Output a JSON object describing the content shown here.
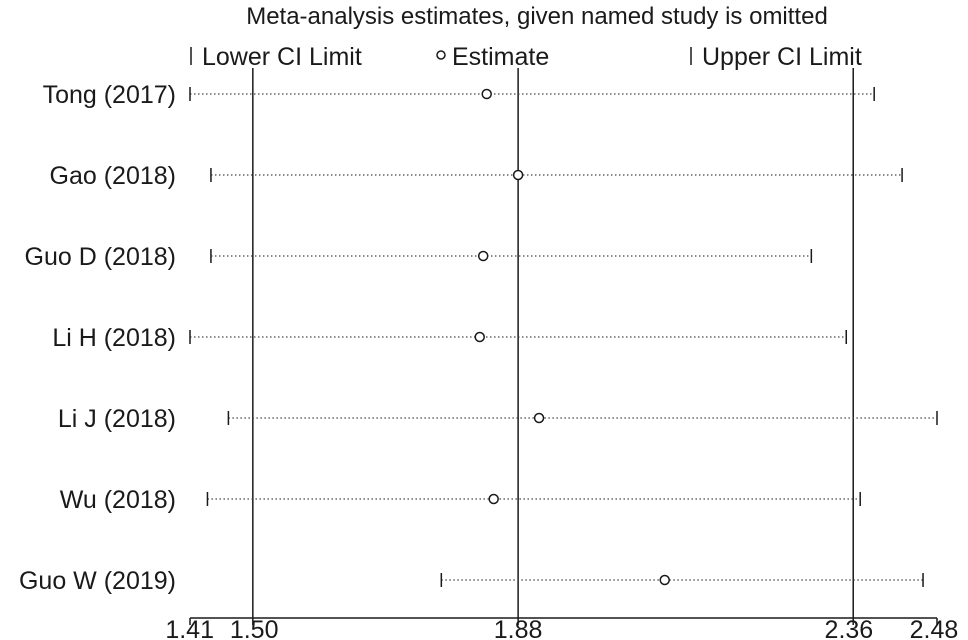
{
  "chart_data": {
    "type": "forest",
    "title": "Meta-analysis estimates, given named study is omitted",
    "legend": [
      {
        "key": "lower",
        "label": "Lower CI Limit",
        "marker": "tick"
      },
      {
        "key": "estimate",
        "label": "Estimate",
        "marker": "circle"
      },
      {
        "key": "upper",
        "label": "Upper CI Limit",
        "marker": "tick"
      }
    ],
    "x_ticks": [
      {
        "value": 1.41,
        "label": "1.41"
      },
      {
        "value": 1.5,
        "label": "1.50"
      },
      {
        "value": 1.88,
        "label": "1.88"
      },
      {
        "value": 2.36,
        "label": "2.36"
      },
      {
        "value": 2.48,
        "label": "2.48"
      }
    ],
    "xlim": [
      1.41,
      2.48
    ],
    "reference_lines": [
      1.5,
      1.88,
      2.36
    ],
    "studies": [
      {
        "label": "Tong (2017)",
        "lower": 1.41,
        "estimate": 1.835,
        "upper": 2.39
      },
      {
        "label": "Gao (2018)",
        "lower": 1.44,
        "estimate": 1.88,
        "upper": 2.43
      },
      {
        "label": "Guo D (2018)",
        "lower": 1.44,
        "estimate": 1.83,
        "upper": 2.3
      },
      {
        "label": "Li H (2018)",
        "lower": 1.41,
        "estimate": 1.825,
        "upper": 2.35
      },
      {
        "label": "Li J (2018)",
        "lower": 1.465,
        "estimate": 1.91,
        "upper": 2.48
      },
      {
        "label": "Wu (2018)",
        "lower": 1.435,
        "estimate": 1.845,
        "upper": 2.37
      },
      {
        "label": "Guo W (2019)",
        "lower": 1.77,
        "estimate": 2.09,
        "upper": 2.46
      }
    ],
    "colors": {
      "line": "#1a1a1a",
      "dotted": "#444444",
      "marker": "#1a1a1a"
    }
  }
}
